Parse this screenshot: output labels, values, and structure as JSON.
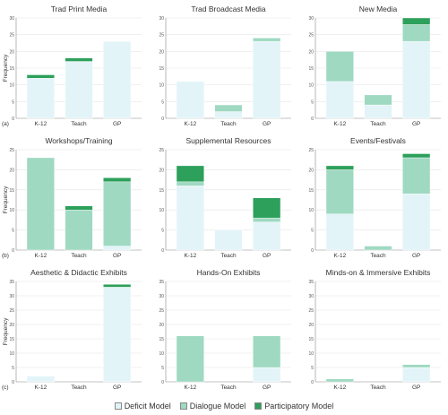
{
  "colors": {
    "deficit": "#e3f4f8",
    "dialogue": "#9fd9c1",
    "participatory": "#2da05b",
    "axis": "#888888",
    "grid": "#e6e6e6"
  },
  "y_axis_label": "Frequency",
  "legend": [
    {
      "key": "deficit",
      "label": "Deficit Model"
    },
    {
      "key": "dialogue",
      "label": "Dialogue Model"
    },
    {
      "key": "participatory",
      "label": "Participatory Model"
    }
  ],
  "chart_data": [
    {
      "type": "bar",
      "title": "Trad Print Media",
      "row_label": "(a)",
      "categories": [
        "K-12",
        "Teach",
        "GP"
      ],
      "ylim": [
        0,
        30
      ],
      "ticks": [
        0,
        5,
        10,
        15,
        20,
        25,
        30
      ],
      "series": [
        {
          "name": "Deficit Model",
          "values": [
            12,
            17,
            23
          ]
        },
        {
          "name": "Dialogue Model",
          "values": [
            0,
            0,
            0
          ]
        },
        {
          "name": "Participatory Model",
          "values": [
            1,
            1,
            0
          ]
        }
      ]
    },
    {
      "type": "bar",
      "title": "Trad Broadcast Media",
      "row_label": "",
      "categories": [
        "K-12",
        "Teach",
        "GP"
      ],
      "ylim": [
        0,
        30
      ],
      "ticks": [
        0,
        5,
        10,
        15,
        20,
        25,
        30
      ],
      "series": [
        {
          "name": "Deficit Model",
          "values": [
            11,
            2,
            23
          ]
        },
        {
          "name": "Dialogue Model",
          "values": [
            0,
            2,
            1
          ]
        },
        {
          "name": "Participatory Model",
          "values": [
            0,
            0,
            0
          ]
        }
      ]
    },
    {
      "type": "bar",
      "title": "New Media",
      "row_label": "",
      "categories": [
        "K-12",
        "Teach",
        "GP"
      ],
      "ylim": [
        0,
        30
      ],
      "ticks": [
        0,
        5,
        10,
        15,
        20,
        25,
        30
      ],
      "series": [
        {
          "name": "Deficit Model",
          "values": [
            11,
            4,
            23
          ]
        },
        {
          "name": "Dialogue Model",
          "values": [
            9,
            3,
            5
          ]
        },
        {
          "name": "Participatory Model",
          "values": [
            0,
            0,
            2
          ]
        }
      ]
    },
    {
      "type": "bar",
      "title": "Workshops/Training",
      "row_label": "(b)",
      "categories": [
        "K-12",
        "Teach",
        "GP"
      ],
      "ylim": [
        0,
        25
      ],
      "ticks": [
        0,
        5,
        10,
        15,
        20,
        25
      ],
      "series": [
        {
          "name": "Deficit Model",
          "values": [
            0,
            0,
            1
          ]
        },
        {
          "name": "Dialogue Model",
          "values": [
            23,
            10,
            16
          ]
        },
        {
          "name": "Participatory Model",
          "values": [
            0,
            1,
            1
          ]
        }
      ]
    },
    {
      "type": "bar",
      "title": "Supplemental Resources",
      "row_label": "",
      "categories": [
        "K-12",
        "Teach",
        "GP"
      ],
      "ylim": [
        0,
        25
      ],
      "ticks": [
        0,
        5,
        10,
        15,
        20,
        25
      ],
      "series": [
        {
          "name": "Deficit Model",
          "values": [
            16,
            5,
            7
          ]
        },
        {
          "name": "Dialogue Model",
          "values": [
            1,
            0,
            1
          ]
        },
        {
          "name": "Participatory Model",
          "values": [
            4,
            0,
            5
          ]
        }
      ]
    },
    {
      "type": "bar",
      "title": "Events/Festivals",
      "row_label": "",
      "categories": [
        "K-12",
        "Teach",
        "GP"
      ],
      "ylim": [
        0,
        25
      ],
      "ticks": [
        0,
        5,
        10,
        15,
        20,
        25
      ],
      "series": [
        {
          "name": "Deficit Model",
          "values": [
            9,
            0,
            14
          ]
        },
        {
          "name": "Dialogue Model",
          "values": [
            11,
            1,
            9
          ]
        },
        {
          "name": "Participatory Model",
          "values": [
            1,
            0,
            1
          ]
        }
      ]
    },
    {
      "type": "bar",
      "title": "Aesthetic & Didactic Exhibits",
      "row_label": "(c)",
      "categories": [
        "K-12",
        "Teach",
        "GP"
      ],
      "ylim": [
        0,
        35
      ],
      "ticks": [
        0,
        5,
        10,
        15,
        20,
        25,
        30,
        35
      ],
      "series": [
        {
          "name": "Deficit Model",
          "values": [
            2,
            0,
            33
          ]
        },
        {
          "name": "Dialogue Model",
          "values": [
            0,
            0,
            0
          ]
        },
        {
          "name": "Participatory Model",
          "values": [
            0,
            0,
            1
          ]
        }
      ]
    },
    {
      "type": "bar",
      "title": "Hands-On Exhibits",
      "row_label": "",
      "categories": [
        "K-12",
        "Teach",
        "GP"
      ],
      "ylim": [
        0,
        35
      ],
      "ticks": [
        0,
        5,
        10,
        15,
        20,
        25,
        30,
        35
      ],
      "series": [
        {
          "name": "Deficit Model",
          "values": [
            0,
            0,
            5
          ]
        },
        {
          "name": "Dialogue Model",
          "values": [
            16,
            0,
            11
          ]
        },
        {
          "name": "Participatory Model",
          "values": [
            0,
            0,
            0
          ]
        }
      ]
    },
    {
      "type": "bar",
      "title": "Minds-on & Immersive Exhibits",
      "row_label": "",
      "categories": [
        "K-12",
        "Teach",
        "GP"
      ],
      "ylim": [
        0,
        35
      ],
      "ticks": [
        0,
        5,
        10,
        15,
        20,
        25,
        30,
        35
      ],
      "series": [
        {
          "name": "Deficit Model",
          "values": [
            0,
            0,
            5
          ]
        },
        {
          "name": "Dialogue Model",
          "values": [
            1,
            0,
            1
          ]
        },
        {
          "name": "Participatory Model",
          "values": [
            0,
            0,
            0
          ]
        }
      ]
    }
  ]
}
